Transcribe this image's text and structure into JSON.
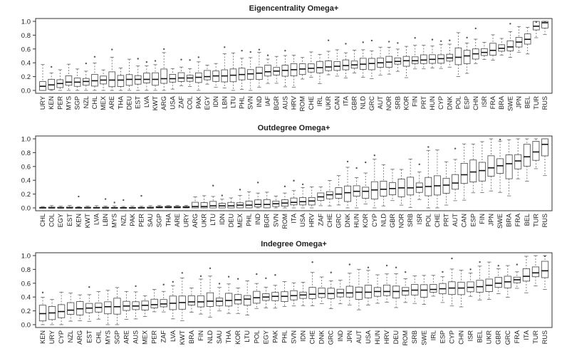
{
  "chart_data": [
    {
      "type": "boxplot",
      "title": "Eigencentrality Omega+",
      "ylim": [
        0,
        1.0
      ],
      "yticks": [
        0.0,
        0.2,
        0.4,
        0.6,
        0.8,
        1.0
      ],
      "ytick_labels": [
        "0.0",
        "0.2",
        "0.4",
        "0.6",
        "0.8",
        "1.0"
      ],
      "categories": [
        "URY",
        "KEN",
        "PER",
        "MYS",
        "SGP",
        "NZL",
        "CHL",
        "MEX",
        "ARE",
        "THA",
        "DEU",
        "EST",
        "LVA",
        "KWT",
        "ARG",
        "USA",
        "ZAF",
        "COL",
        "PAK",
        "EGY",
        "IDN",
        "LBN",
        "LTU",
        "PHL",
        "SVN",
        "IND",
        "IAF",
        "BGR",
        "AUS",
        "HRV",
        "ROM",
        "CHE",
        "IRL",
        "UKR",
        "CAN",
        "ITA",
        "GBR",
        "NLD",
        "GRC",
        "AUT",
        "NOR",
        "SRB",
        "KOR",
        "FIN",
        "PRT",
        "HUN",
        "CYP",
        "DNK",
        "POL",
        "ESP",
        "CHN",
        "ISR",
        "FRA",
        "BRA",
        "SWE",
        "JPN",
        "BEL",
        "TUR",
        "RUS"
      ],
      "medians": [
        0.06,
        0.08,
        0.1,
        0.12,
        0.12,
        0.13,
        0.14,
        0.15,
        0.15,
        0.15,
        0.16,
        0.16,
        0.16,
        0.16,
        0.17,
        0.17,
        0.18,
        0.18,
        0.19,
        0.2,
        0.21,
        0.21,
        0.22,
        0.23,
        0.24,
        0.25,
        0.27,
        0.28,
        0.29,
        0.3,
        0.31,
        0.32,
        0.33,
        0.34,
        0.35,
        0.36,
        0.37,
        0.38,
        0.39,
        0.4,
        0.41,
        0.42,
        0.43,
        0.43,
        0.44,
        0.45,
        0.46,
        0.47,
        0.48,
        0.5,
        0.53,
        0.55,
        0.58,
        0.61,
        0.63,
        0.7,
        0.74,
        0.93,
        0.98
      ]
    },
    {
      "type": "boxplot",
      "title": "Outdegree Omega+",
      "ylim": [
        0,
        1.0
      ],
      "yticks": [
        0.0,
        0.2,
        0.4,
        0.6,
        0.8,
        1.0
      ],
      "ytick_labels": [
        "0.0",
        "0.2",
        "0.4",
        "0.6",
        "0.8",
        "1.0"
      ],
      "categories": [
        "CHL",
        "COL",
        "EGY",
        "EST",
        "KEN",
        "KWT",
        "LVA",
        "LBN",
        "MYS",
        "NZL",
        "PAK",
        "PER",
        "SAU",
        "SGP",
        "THA",
        "ARE",
        "URY",
        "ARG",
        "UKR",
        "LTU",
        "IDN",
        "DEU",
        "MEX",
        "PHL",
        "IND",
        "BGR",
        "SVN",
        "ROM",
        "ITA",
        "USA",
        "HRV",
        "ZAF",
        "CHE",
        "GRC",
        "DNK",
        "HUN",
        "KOR",
        "CYP",
        "NLD",
        "GBR",
        "NOR",
        "SRB",
        "ISR",
        "POL",
        "CHE",
        "PRT",
        "AUT",
        "CAN",
        "ESP",
        "FIN",
        "JPN",
        "SWE",
        "BRA",
        "FRA",
        "BEL",
        "TUR",
        "RUS"
      ],
      "medians": [
        0.0,
        0.0,
        0.0,
        0.0,
        0.0,
        0.0,
        0.0,
        0.0,
        0.0,
        0.0,
        0.0,
        0.0,
        0.0,
        0.01,
        0.01,
        0.01,
        0.01,
        0.02,
        0.02,
        0.03,
        0.03,
        0.03,
        0.04,
        0.04,
        0.05,
        0.05,
        0.06,
        0.07,
        0.08,
        0.09,
        0.1,
        0.16,
        0.19,
        0.2,
        0.22,
        0.24,
        0.24,
        0.26,
        0.27,
        0.28,
        0.29,
        0.29,
        0.3,
        0.31,
        0.32,
        0.33,
        0.36,
        0.48,
        0.52,
        0.54,
        0.58,
        0.61,
        0.64,
        0.68,
        0.74,
        0.81,
        0.92
      ]
    },
    {
      "type": "boxplot",
      "title": "Indegree Omega+",
      "ylim": [
        0,
        1.0
      ],
      "yticks": [
        0.0,
        0.2,
        0.4,
        0.6,
        0.8,
        1.0
      ],
      "ytick_labels": [
        "0.0",
        "0.2",
        "0.4",
        "0.6",
        "0.8",
        "1.0"
      ],
      "categories": [
        "KEN",
        "URY",
        "CYP",
        "NZL",
        "ARG",
        "EST",
        "CHL",
        "MYS",
        "SGP",
        "ARE",
        "AUS",
        "MEX",
        "PER",
        "ZAF",
        "LVA",
        "KWT",
        "BRA",
        "FIN",
        "NLD",
        "SAU",
        "THA",
        "KOR",
        "LTU",
        "POL",
        "EGY",
        "PAK",
        "PHL",
        "SVN",
        "IDN",
        "CHE",
        "DNK",
        "GRC",
        "IND",
        "JPN",
        "AUT",
        "USA",
        "HUN",
        "HRV",
        "DEU",
        "ROM",
        "SRB",
        "SWE",
        "IRL",
        "ESP",
        "CYP",
        "CHN",
        "ISR",
        "BEL",
        "UKR",
        "GBR",
        "GRC",
        "FRA",
        "ITA",
        "TUR",
        "RUS"
      ],
      "medians": [
        0.16,
        0.17,
        0.19,
        0.21,
        0.23,
        0.24,
        0.25,
        0.26,
        0.26,
        0.27,
        0.27,
        0.28,
        0.29,
        0.3,
        0.31,
        0.32,
        0.33,
        0.33,
        0.34,
        0.34,
        0.35,
        0.36,
        0.37,
        0.39,
        0.4,
        0.41,
        0.41,
        0.42,
        0.43,
        0.44,
        0.45,
        0.45,
        0.46,
        0.46,
        0.47,
        0.47,
        0.48,
        0.48,
        0.48,
        0.49,
        0.5,
        0.5,
        0.51,
        0.52,
        0.53,
        0.53,
        0.54,
        0.55,
        0.57,
        0.6,
        0.62,
        0.65,
        0.7,
        0.75,
        0.78
      ]
    }
  ],
  "colors": {
    "box_stroke": "#444444",
    "median": "#111111",
    "whisker": "#666666",
    "outlier": "#555555",
    "frame": "#333333"
  }
}
